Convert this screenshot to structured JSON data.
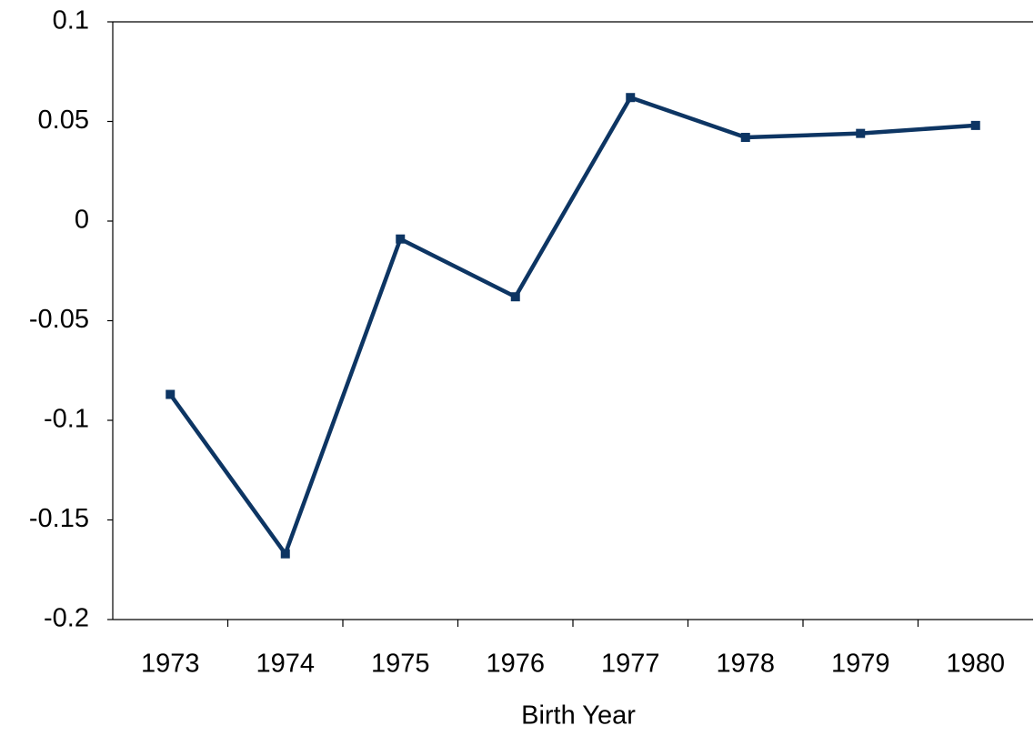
{
  "chart_data": {
    "type": "line",
    "x_label": "Birth Year",
    "categories": [
      "1973",
      "1974",
      "1975",
      "1976",
      "1977",
      "1978",
      "1979",
      "1980"
    ],
    "series": [
      {
        "color": "#0d3563",
        "values": [
          -0.087,
          -0.167,
          -0.009,
          -0.038,
          0.062,
          0.042,
          0.044,
          0.048
        ]
      }
    ],
    "ylim": [
      -0.2,
      0.1
    ],
    "yticks": [
      -0.2,
      -0.15,
      -0.1,
      -0.05,
      0,
      0.05,
      0.1
    ],
    "grid": false
  }
}
